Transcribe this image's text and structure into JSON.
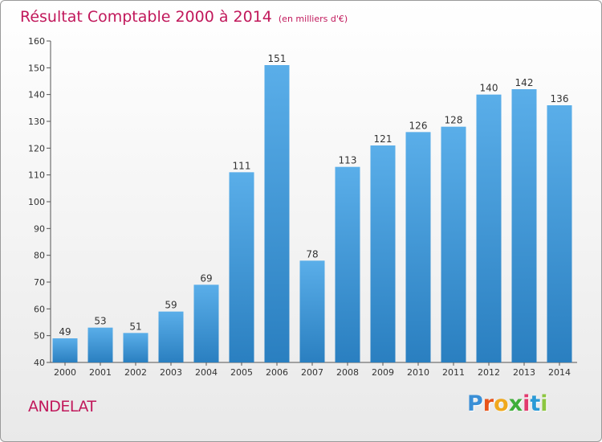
{
  "title": "Résultat Comptable 2000 à 2014",
  "subtitle": "(en milliers d'€)",
  "commune": "ANDELAT",
  "logo": {
    "letters": [
      "P",
      "r",
      "o",
      "x",
      "i",
      "t",
      "i"
    ],
    "colors": [
      "#3a8fd6",
      "#e8541a",
      "#f0a81c",
      "#3fae3a",
      "#e23a6e",
      "#2a9ad6",
      "#8cc63f"
    ]
  },
  "colors": {
    "title": "#c1185b",
    "bar_top": "#5aaee9",
    "bar_bottom": "#2a7fc0",
    "axis": "#555555",
    "label": "#333333"
  },
  "chart_data": {
    "type": "bar",
    "categories": [
      "2000",
      "2001",
      "2002",
      "2003",
      "2004",
      "2005",
      "2006",
      "2007",
      "2008",
      "2009",
      "2010",
      "2011",
      "2012",
      "2013",
      "2014"
    ],
    "values": [
      49,
      53,
      51,
      59,
      69,
      111,
      151,
      78,
      113,
      121,
      126,
      128,
      140,
      142,
      136
    ],
    "ylim": [
      40,
      160
    ],
    "yticks": [
      40,
      50,
      60,
      70,
      80,
      90,
      100,
      110,
      120,
      130,
      140,
      150,
      160
    ],
    "title": "Résultat Comptable 2000 à 2014",
    "xlabel": "",
    "ylabel": "",
    "grid": false,
    "data_labels": true
  }
}
